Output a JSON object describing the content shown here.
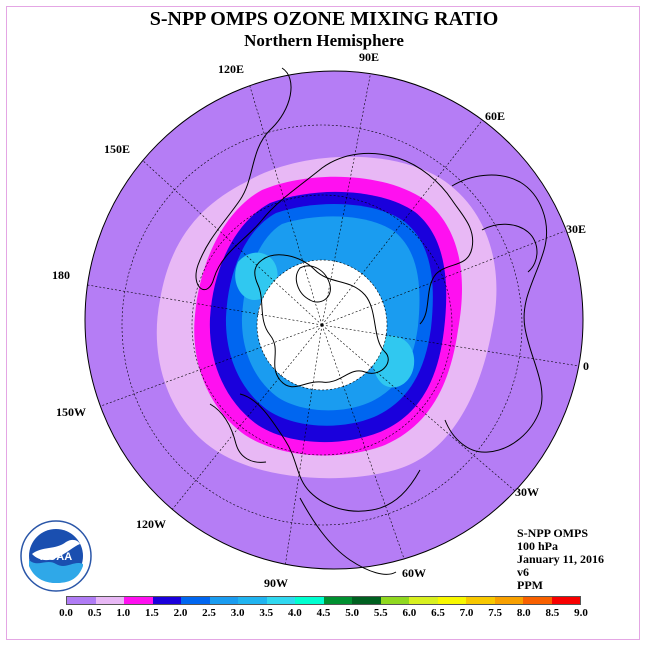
{
  "title": "S-NPP OMPS OZONE MIXING RATIO",
  "subtitle": "Northern Hemisphere",
  "longitude_labels": [
    "90E",
    "60E",
    "30E",
    "0",
    "30W",
    "60W",
    "90W",
    "120W",
    "150W",
    "180",
    "150E",
    "120E"
  ],
  "info": {
    "instrument": "S-NPP OMPS",
    "level": "100 hPa",
    "date": "January 11, 2016",
    "version": "v6",
    "units": "PPM"
  },
  "logo_text": "NOAA",
  "legend": {
    "ticks": [
      "0.0",
      "0.5",
      "1.0",
      "1.5",
      "2.0",
      "2.5",
      "3.0",
      "3.5",
      "4.0",
      "4.5",
      "5.0",
      "5.5",
      "6.0",
      "6.5",
      "7.0",
      "7.5",
      "8.0",
      "8.5",
      "9.0"
    ],
    "colors": [
      "#b07cf5",
      "#e8b8f5",
      "#ff10f0",
      "#1a00dc",
      "#0066f0",
      "#1a9cf0",
      "#20b4f0",
      "#30d8f0",
      "#00ffd0",
      "#009030",
      "#006020",
      "#90d820",
      "#d8f020",
      "#f8f800",
      "#f8c800",
      "#f8a000",
      "#f86000",
      "#f80000",
      "#805028"
    ]
  },
  "map_data": {
    "projection": "north polar stereographic",
    "field": "ozone mixing ratio",
    "pressure_level": "100 hPa",
    "no_data_region": "polar night (white disk centered on North Pole)",
    "ranges_ppm": [
      {
        "region": "outer hemisphere (low latitudes)",
        "min": 0.0,
        "max": 0.5
      },
      {
        "region": "subtropical ring",
        "min": 0.5,
        "max": 1.0
      },
      {
        "region": "mid-latitude ring",
        "min": 1.0,
        "max": 1.5
      },
      {
        "region": "high-latitude ring",
        "min": 1.5,
        "max": 2.0
      },
      {
        "region": "polar vortex edge",
        "min": 2.0,
        "max": 3.5
      }
    ]
  }
}
